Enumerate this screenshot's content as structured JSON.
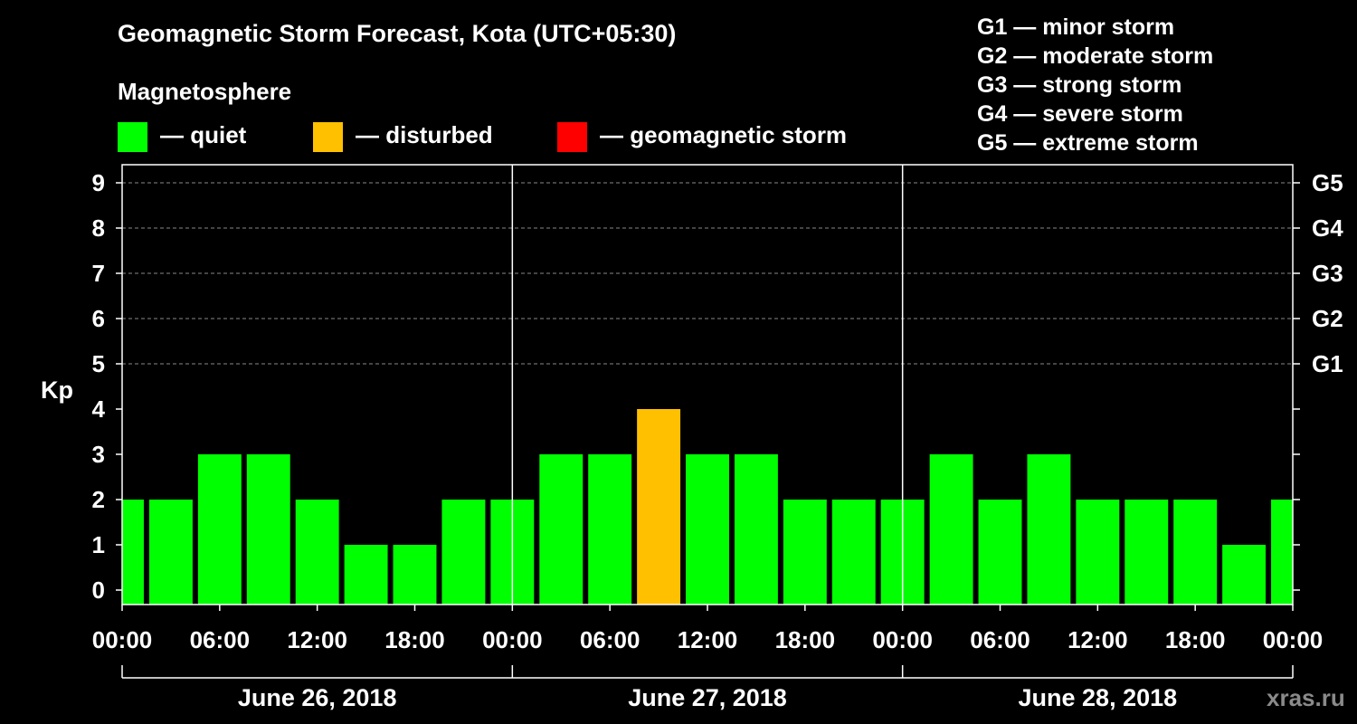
{
  "title": "Geomagnetic Storm Forecast, Kota (UTC+05:30)",
  "magnetosphere_label": "Magnetosphere",
  "legend": [
    {
      "label": "— quiet",
      "color": "#00ff00"
    },
    {
      "label": "— disturbed",
      "color": "#ffc000"
    },
    {
      "label": "— geomagnetic storm",
      "color": "#ff0000"
    }
  ],
  "g_scale": [
    "G1 — minor storm",
    "G2 — moderate storm",
    "G3 — strong storm",
    "G4 — severe storm",
    "G5 — extreme storm"
  ],
  "watermark": "xras.ru",
  "chart_data": {
    "type": "bar",
    "ylabel": "Kp",
    "ylim": [
      0,
      9
    ],
    "yticks": [
      "0",
      "1",
      "2",
      "3",
      "4",
      "5",
      "6",
      "7",
      "8",
      "9"
    ],
    "right_axis": [
      {
        "kp": 5,
        "label": "G1"
      },
      {
        "kp": 6,
        "label": "G2"
      },
      {
        "kp": 7,
        "label": "G3"
      },
      {
        "kp": 8,
        "label": "G4"
      },
      {
        "kp": 9,
        "label": "G5"
      }
    ],
    "x_unit": "hours from June 26, 2018 00:00 (UTC+05:30)",
    "xlim": [
      0,
      72
    ],
    "x_tick_labels": [
      {
        "hour": 0,
        "label": "00:00"
      },
      {
        "hour": 6,
        "label": "06:00"
      },
      {
        "hour": 12,
        "label": "12:00"
      },
      {
        "hour": 18,
        "label": "18:00"
      },
      {
        "hour": 24,
        "label": "00:00"
      },
      {
        "hour": 30,
        "label": "06:00"
      },
      {
        "hour": 36,
        "label": "12:00"
      },
      {
        "hour": 42,
        "label": "18:00"
      },
      {
        "hour": 48,
        "label": "00:00"
      },
      {
        "hour": 54,
        "label": "06:00"
      },
      {
        "hour": 60,
        "label": "12:00"
      },
      {
        "hour": 66,
        "label": "18:00"
      },
      {
        "hour": 72,
        "label": "00:00"
      }
    ],
    "dates": [
      {
        "start": 0,
        "end": 24,
        "label": "June 26, 2018"
      },
      {
        "start": 24,
        "end": 48,
        "label": "June 27, 2018"
      },
      {
        "start": 48,
        "end": 72,
        "label": "June 28, 2018"
      }
    ],
    "bars": [
      {
        "start": 0,
        "end": 1.5,
        "kp": 2,
        "status": "quiet"
      },
      {
        "start": 1.5,
        "end": 4.5,
        "kp": 2,
        "status": "quiet"
      },
      {
        "start": 4.5,
        "end": 7.5,
        "kp": 3,
        "status": "quiet"
      },
      {
        "start": 7.5,
        "end": 10.5,
        "kp": 3,
        "status": "quiet"
      },
      {
        "start": 10.5,
        "end": 13.5,
        "kp": 2,
        "status": "quiet"
      },
      {
        "start": 13.5,
        "end": 16.5,
        "kp": 1,
        "status": "quiet"
      },
      {
        "start": 16.5,
        "end": 19.5,
        "kp": 1,
        "status": "quiet"
      },
      {
        "start": 19.5,
        "end": 22.5,
        "kp": 2,
        "status": "quiet"
      },
      {
        "start": 22.5,
        "end": 25.5,
        "kp": 2,
        "status": "quiet"
      },
      {
        "start": 25.5,
        "end": 28.5,
        "kp": 3,
        "status": "quiet"
      },
      {
        "start": 28.5,
        "end": 31.5,
        "kp": 3,
        "status": "quiet"
      },
      {
        "start": 31.5,
        "end": 34.5,
        "kp": 4,
        "status": "disturbed"
      },
      {
        "start": 34.5,
        "end": 37.5,
        "kp": 3,
        "status": "quiet"
      },
      {
        "start": 37.5,
        "end": 40.5,
        "kp": 3,
        "status": "quiet"
      },
      {
        "start": 40.5,
        "end": 43.5,
        "kp": 2,
        "status": "quiet"
      },
      {
        "start": 43.5,
        "end": 46.5,
        "kp": 2,
        "status": "quiet"
      },
      {
        "start": 46.5,
        "end": 49.5,
        "kp": 2,
        "status": "quiet"
      },
      {
        "start": 49.5,
        "end": 52.5,
        "kp": 3,
        "status": "quiet"
      },
      {
        "start": 52.5,
        "end": 55.5,
        "kp": 2,
        "status": "quiet"
      },
      {
        "start": 55.5,
        "end": 58.5,
        "kp": 3,
        "status": "quiet"
      },
      {
        "start": 58.5,
        "end": 61.5,
        "kp": 2,
        "status": "quiet"
      },
      {
        "start": 61.5,
        "end": 64.5,
        "kp": 2,
        "status": "quiet"
      },
      {
        "start": 64.5,
        "end": 67.5,
        "kp": 2,
        "status": "quiet"
      },
      {
        "start": 67.5,
        "end": 70.5,
        "kp": 1,
        "status": "quiet"
      },
      {
        "start": 70.5,
        "end": 72,
        "kp": 2,
        "status": "quiet"
      }
    ],
    "status_colors": {
      "quiet": "#00ff00",
      "disturbed": "#ffc000",
      "storm": "#ff0000"
    }
  }
}
